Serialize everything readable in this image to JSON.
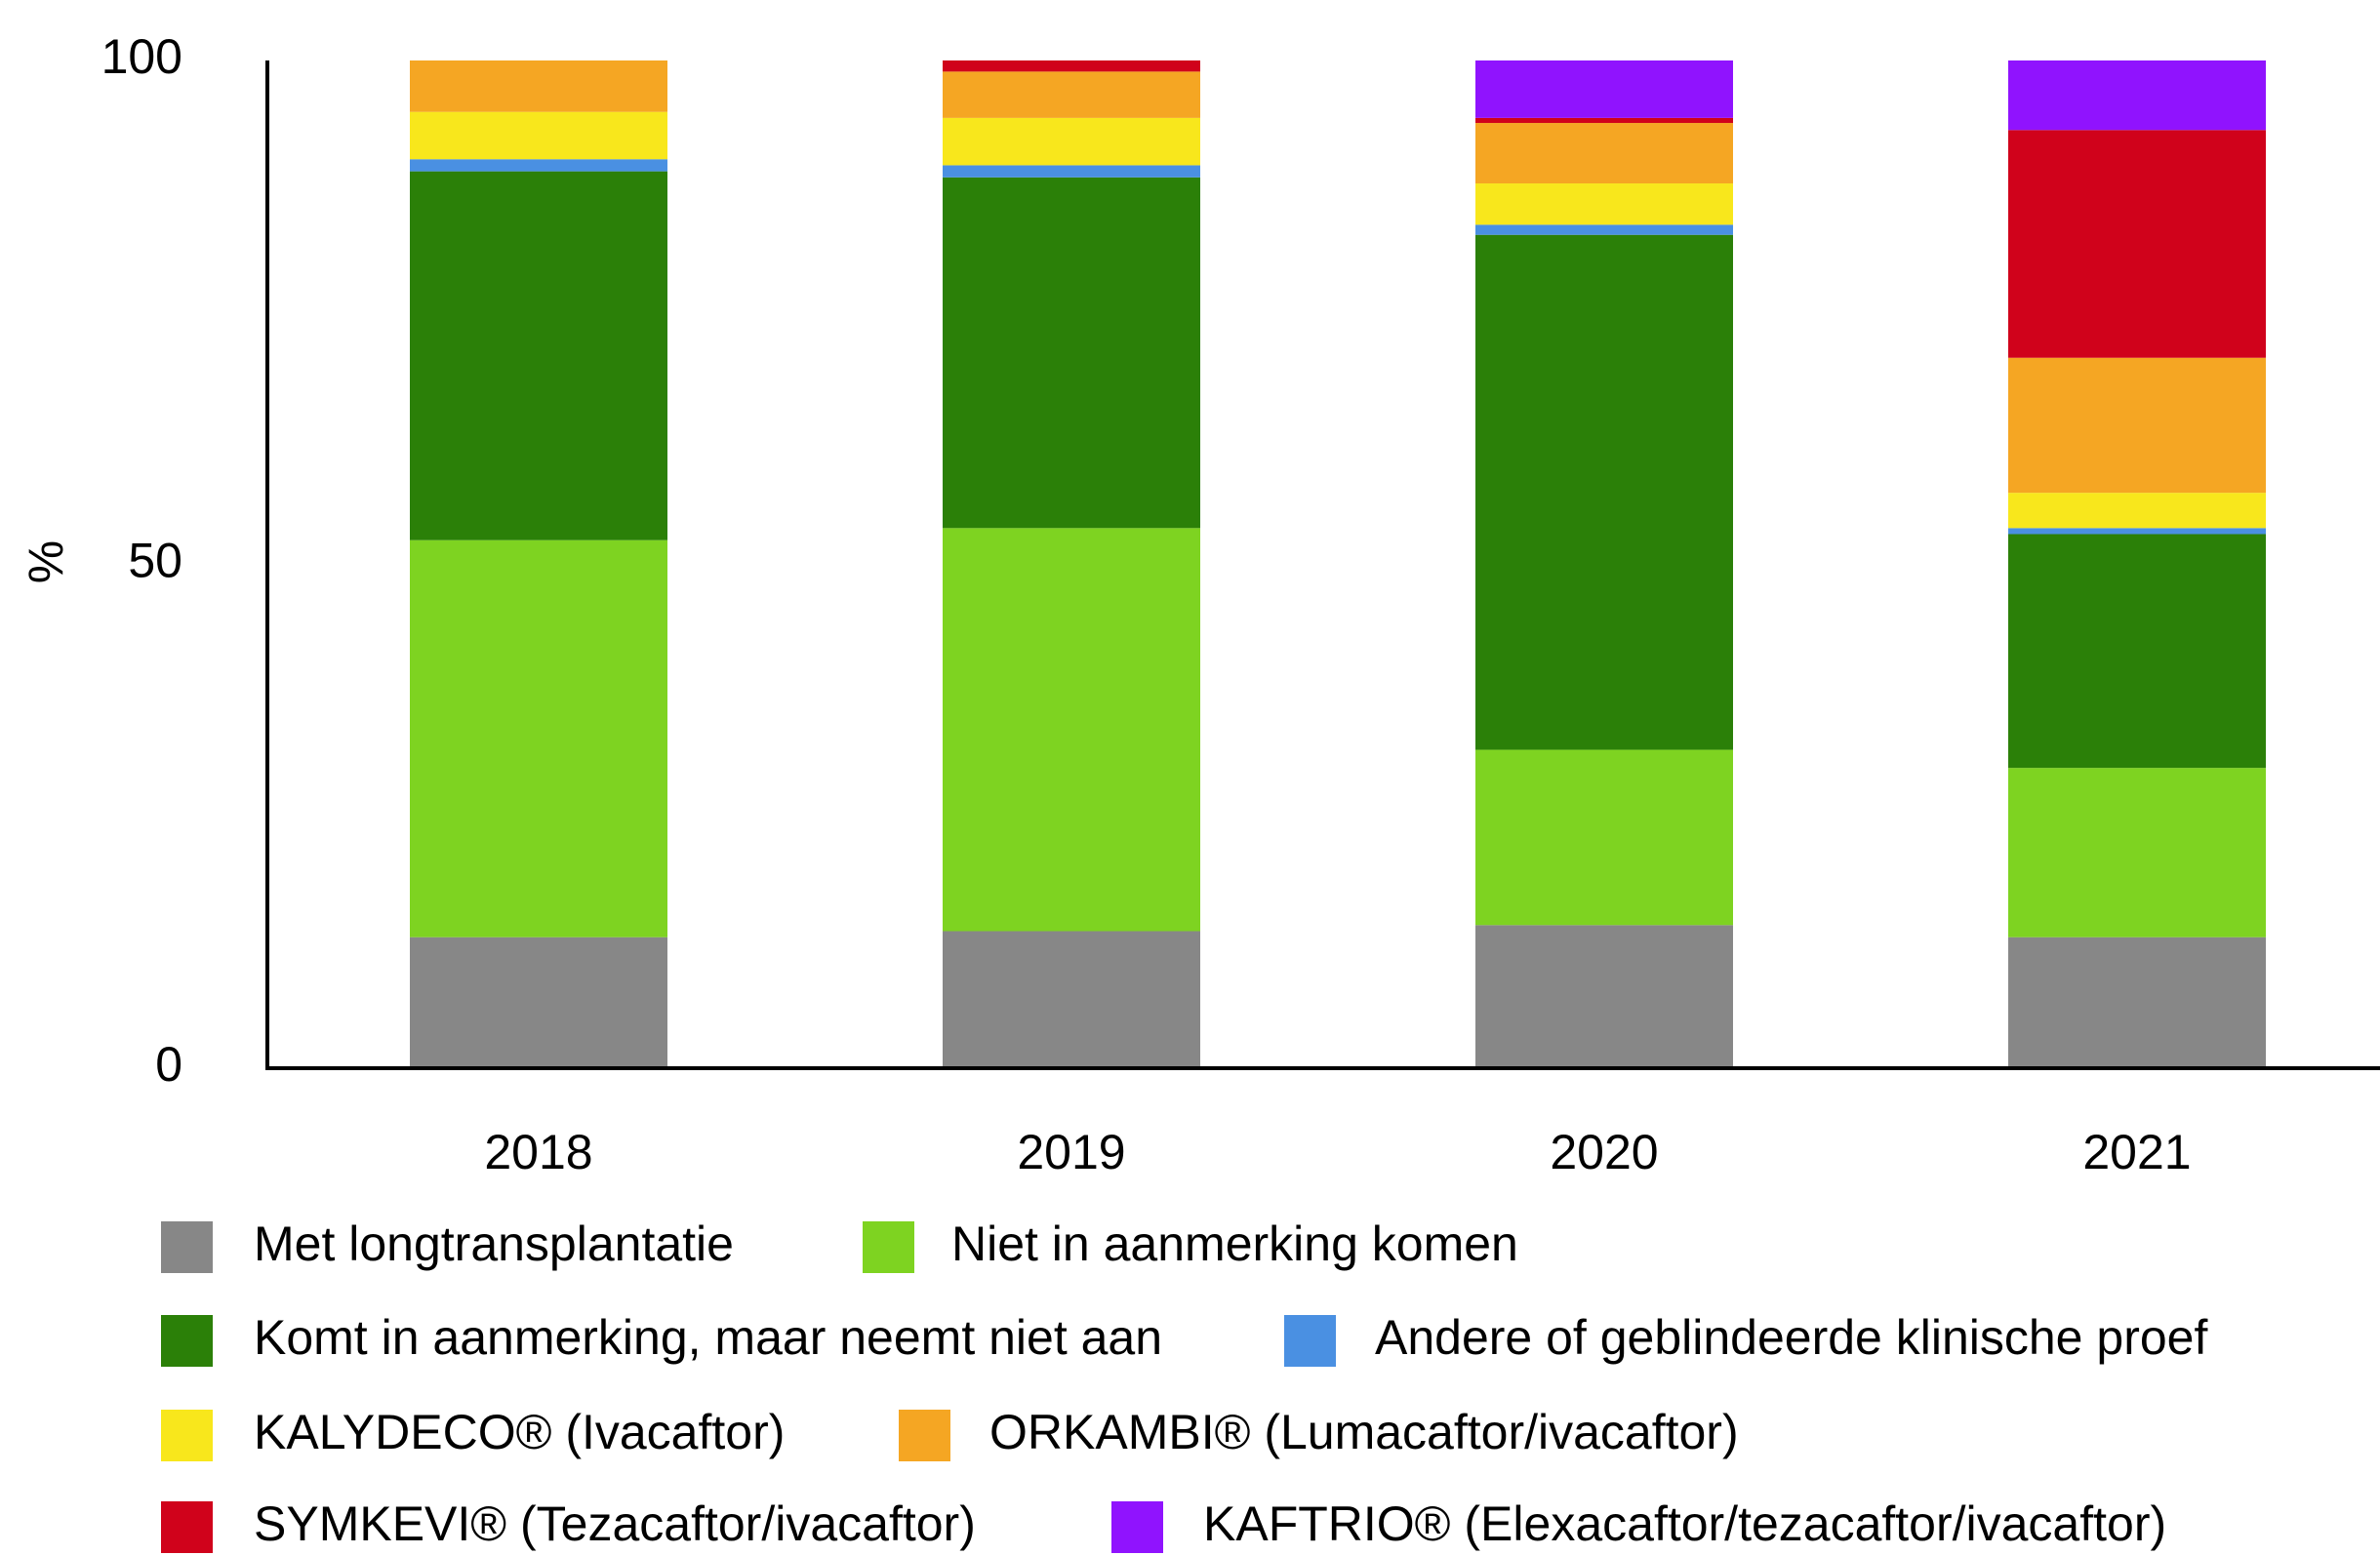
{
  "chart_data": {
    "type": "stacked_bar",
    "y_label": "%",
    "categories": [
      "2018",
      "2019",
      "2020",
      "2021"
    ],
    "ylim": [
      0,
      100
    ],
    "yticks": [
      0,
      50,
      100
    ],
    "series": [
      {
        "name": "Met longtransplantatie",
        "color": "#878787",
        "values": [
          13.0,
          13.6,
          14.2,
          13.0
        ]
      },
      {
        "name": "Niet in aanmerking komen",
        "color": "#7ed321",
        "values": [
          39.4,
          40.0,
          17.4,
          16.8
        ]
      },
      {
        "name": "Komt in aanmerking, maar neemt niet aan",
        "color": "#2b8008",
        "values": [
          36.6,
          34.8,
          51.1,
          23.2
        ]
      },
      {
        "name": "Andere of geblindeerde klinische proef",
        "color": "#4a90e2",
        "values": [
          1.2,
          1.2,
          1.0,
          0.6
        ]
      },
      {
        "name": "KALYDECO® (Ivacaftor)",
        "color": "#f8e71c",
        "values": [
          4.7,
          4.7,
          4.1,
          3.5
        ]
      },
      {
        "name": "ORKAMBI® (Lumacaftor/ivacaftor)",
        "color": "#f5a623",
        "values": [
          5.1,
          4.6,
          6.0,
          13.4
        ]
      },
      {
        "name": "SYMKEVI® (Tezacaftor/ivacaftor)",
        "color": "#d0021b",
        "values": [
          0,
          1.1,
          0.5,
          22.6
        ]
      },
      {
        "name": "KAFTRIO® (Elexacaftor/tezacaftor/ivacaftor)",
        "color": "#9013fe",
        "values": [
          0,
          0,
          5.7,
          6.9
        ]
      }
    ]
  }
}
